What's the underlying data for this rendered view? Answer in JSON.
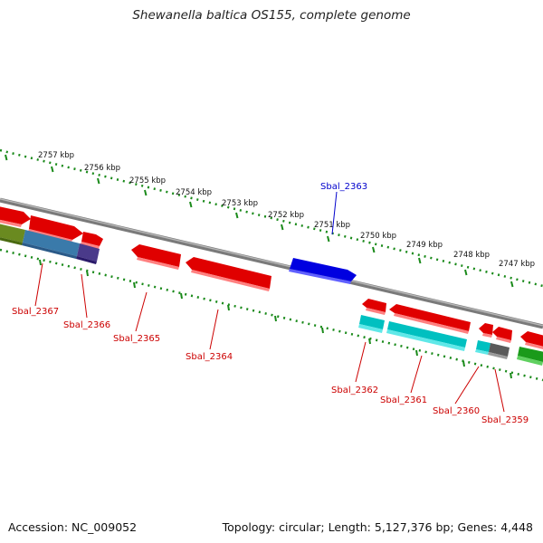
{
  "title": "Shewanella baltica OS155, complete genome",
  "footer": {
    "accession": "Accession: NC_009052",
    "summary": "Topology: circular; Length: 5,127,376 bp; Genes: 4,448"
  },
  "ruler_labels": [
    "2757 kbp",
    "2756 kbp",
    "2755 kbp",
    "2754 kbp",
    "2753 kbp",
    "2752 kbp",
    "2751 kbp",
    "2750 kbp",
    "2749 kbp",
    "2748 kbp",
    "2747 kbp"
  ],
  "gene_labels": [
    "Sbal_2367",
    "Sbal_2366",
    "Sbal_2365",
    "Sbal_2364",
    "Sbal_2363",
    "Sbal_2362",
    "Sbal_2361",
    "Sbal_2360",
    "Sbal_2359"
  ],
  "colors": {
    "cds": "#ee0000",
    "highlight": "#0000dd",
    "label_red": "#cc0000",
    "cyan": "#00c8c8",
    "green": "#22aa22",
    "olive": "#6a8a20",
    "steelblue": "#3a7aaa",
    "purple": "#4a3a8a",
    "gray": "#666666",
    "ruler": "#1a8a1a",
    "backbone": "#888888"
  }
}
